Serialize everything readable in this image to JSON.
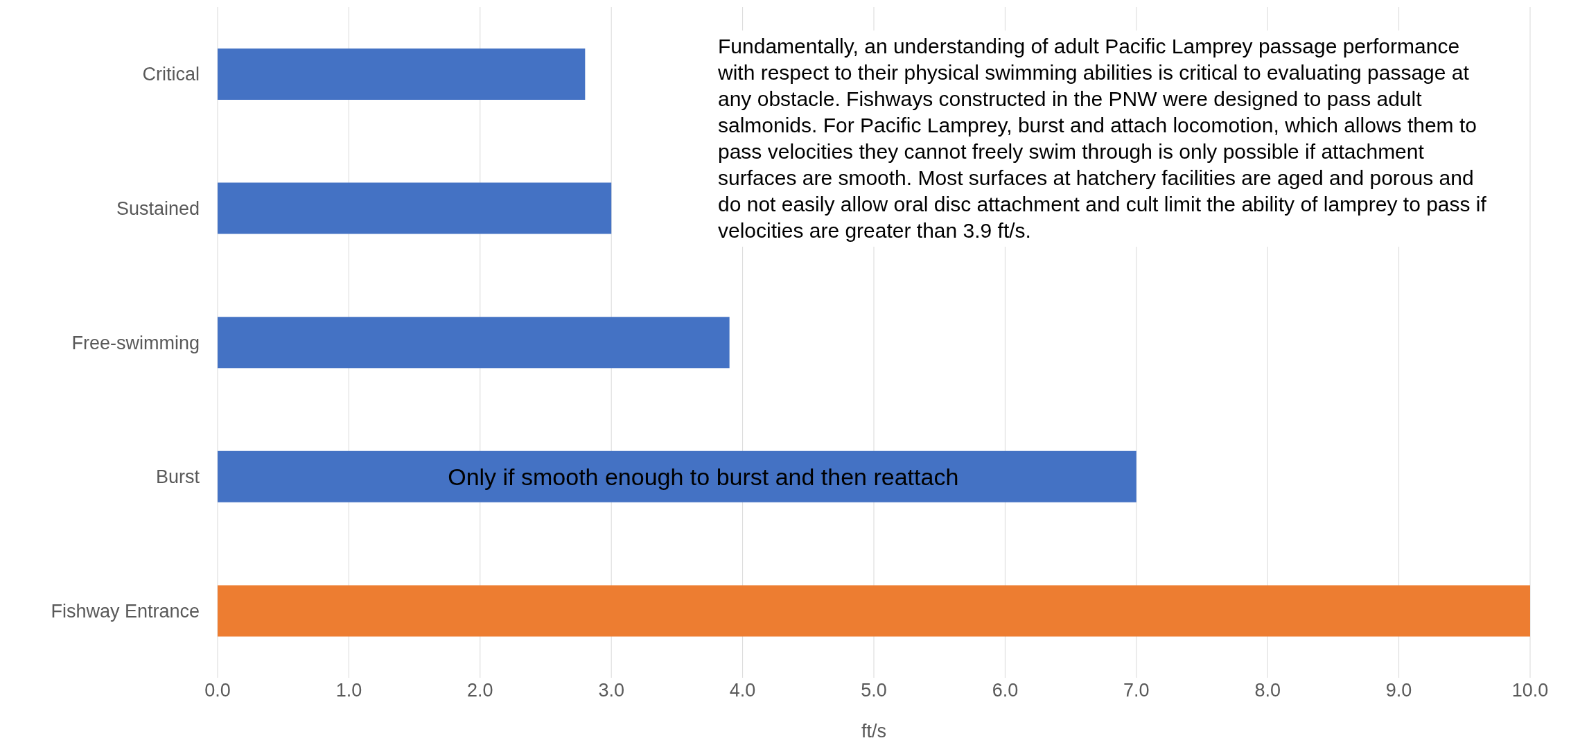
{
  "chart_data": {
    "type": "bar",
    "orientation": "horizontal",
    "categories": [
      "Critical",
      "Sustained",
      "Free-swimming",
      "Burst",
      "Fishway Entrance"
    ],
    "values": [
      2.8,
      3.0,
      3.9,
      7.0,
      10.0
    ],
    "colors": [
      "#4472c4",
      "#4472c4",
      "#4472c4",
      "#4472c4",
      "#ed7d31"
    ],
    "xlabel": "ft/s",
    "xlim": [
      0,
      10
    ],
    "xticks": [
      {
        "value": 0,
        "label": "0.0"
      },
      {
        "value": 1,
        "label": "1.0"
      },
      {
        "value": 2,
        "label": "2.0"
      },
      {
        "value": 3,
        "label": "3.0"
      },
      {
        "value": 4,
        "label": "4.0"
      },
      {
        "value": 5,
        "label": "5.0"
      },
      {
        "value": 6,
        "label": "6.0"
      },
      {
        "value": 7,
        "label": "7.0"
      },
      {
        "value": 8,
        "label": "8.0"
      },
      {
        "value": 9,
        "label": "9.0"
      },
      {
        "value": 10,
        "label": "10.0"
      }
    ],
    "grid": "x",
    "annotations": [
      "Fundamentally, an understanding of adult Pacific Lamprey passage performance with respect to their physical swimming abilities is critical to evaluating passage at any obstacle. Fishways constructed in the PNW were designed to pass adult salmonids. For Pacific Lamprey, burst and attach locomotion, which allows them to pass velocities they cannot freely swim through is only possible if attachment surfaces are smooth. Most surfaces at hatchery facilities are aged and porous and do not easily allow oral disc attachment and cult limit the ability of lamprey to pass if velocities are greater than 3.9 ft/s.",
      "Only if smooth enough to burst and then reattach"
    ]
  }
}
